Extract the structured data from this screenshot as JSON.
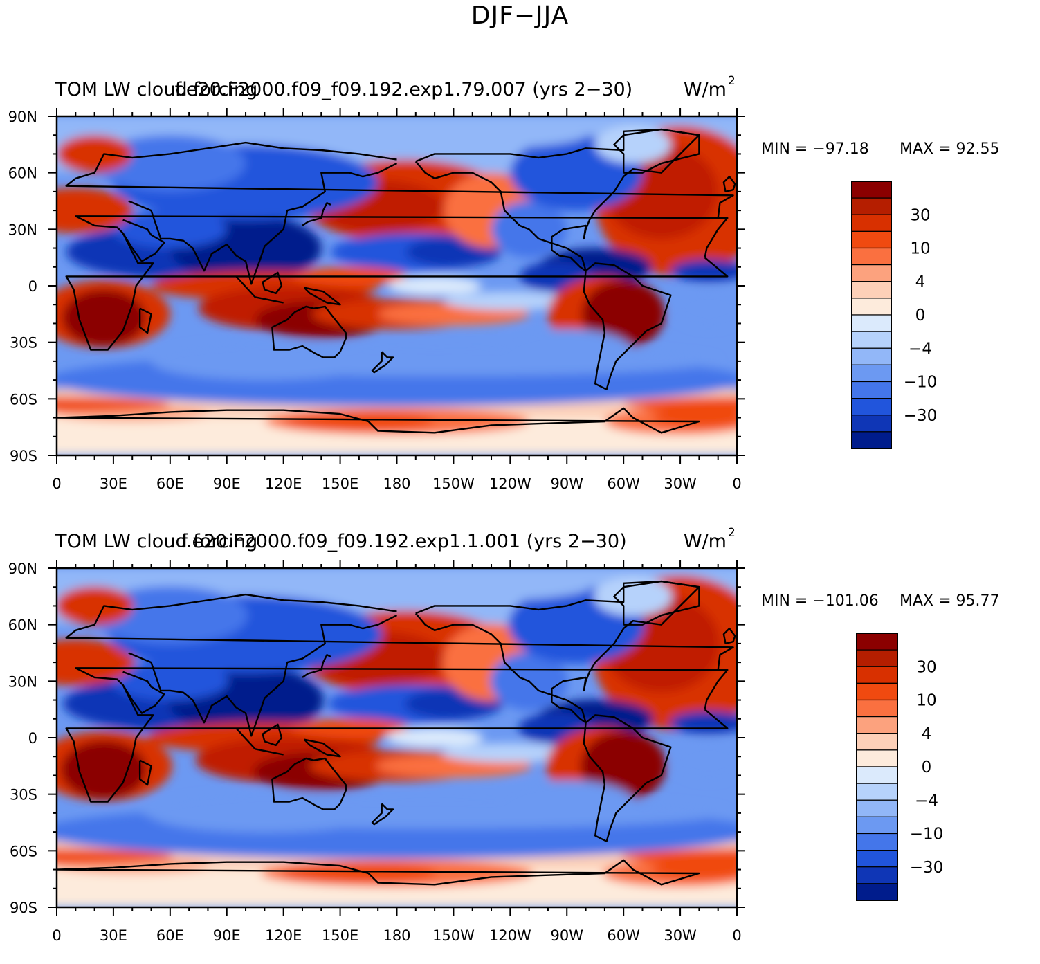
{
  "title": "DJF−JJA",
  "colorbar_labels": [
    "30",
    "10",
    "4",
    "0",
    "−4",
    "−10",
    "−30"
  ],
  "colorbar_colors": [
    "#8b0000",
    "#b51e00",
    "#d83000",
    "#f04a10",
    "#fa7040",
    "#fca27e",
    "#fdd0b8",
    "#fdebdc",
    "#dbeafc",
    "#b6d2fb",
    "#92b7f8",
    "#6c99f2",
    "#4476ea",
    "#2155dc",
    "#0f36b6",
    "#001c8c"
  ],
  "lat_labels": [
    "90N",
    "60N",
    "30N",
    "0",
    "30S",
    "60S",
    "90S"
  ],
  "lon_labels": [
    "0",
    "30E",
    "60E",
    "90E",
    "120E",
    "150E",
    "180",
    "150W",
    "120W",
    "90W",
    "60W",
    "30W",
    "0"
  ],
  "panels": [
    {
      "title_left": "TOM LW cloud forcing",
      "title_center": "f.e20.F2000.f09_f09.192.exp1.79.007 (yrs 2−30)",
      "units": "W/m",
      "units_sup": "2",
      "min_label": "MIN = −97.18",
      "max_label": "MAX =  92.55"
    },
    {
      "title_left": "TOM LW cloud forcing",
      "title_center": "f.e20.F2000.f09_f09.192.exp1.1.001 (yrs 2−30)",
      "units": "W/m",
      "units_sup": "2",
      "min_label": "MIN = −101.06",
      "max_label": "MAX =  95.77"
    }
  ]
}
